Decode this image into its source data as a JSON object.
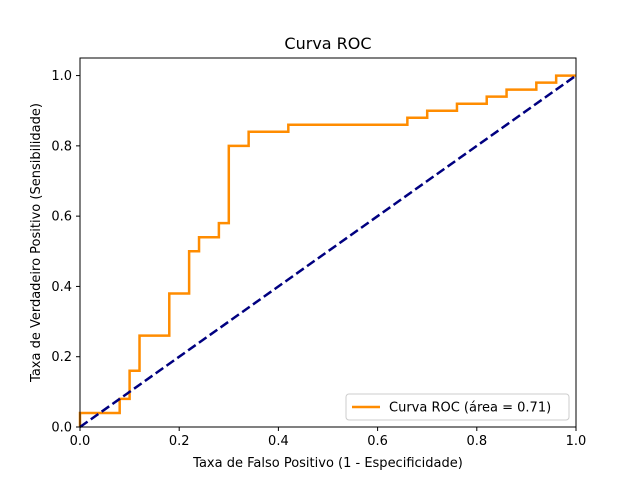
{
  "chart_data": {
    "type": "line",
    "title": "Curva ROC",
    "xlabel": "Taxa de Falso Positivo (1 - Especificidade)",
    "ylabel": "Taxa de Verdadeiro Positivo (Sensibilidade)",
    "xlim": [
      0.0,
      1.0
    ],
    "ylim": [
      0.0,
      1.05
    ],
    "xticks": [
      0.0,
      0.2,
      0.4,
      0.6,
      0.8,
      1.0
    ],
    "yticks": [
      0.0,
      0.2,
      0.4,
      0.6,
      0.8,
      1.0
    ],
    "xtick_labels": [
      "0.0",
      "0.2",
      "0.4",
      "0.6",
      "0.8",
      "1.0"
    ],
    "ytick_labels": [
      "0.0",
      "0.2",
      "0.4",
      "0.6",
      "0.8",
      "1.0"
    ],
    "grid": false,
    "legend_position": "lower-right",
    "series": [
      {
        "name": "Curva ROC (área = 0.71)",
        "color": "#ff8c00",
        "style": "solid",
        "x": [
          0.0,
          0.0,
          0.08,
          0.08,
          0.1,
          0.1,
          0.12,
          0.12,
          0.18,
          0.18,
          0.22,
          0.22,
          0.24,
          0.24,
          0.28,
          0.28,
          0.3,
          0.3,
          0.34,
          0.34,
          0.42,
          0.42,
          0.66,
          0.66,
          0.7,
          0.7,
          0.76,
          0.76,
          0.82,
          0.82,
          0.86,
          0.86,
          0.92,
          0.92,
          0.96,
          0.96,
          1.0
        ],
        "y": [
          0.0,
          0.04,
          0.04,
          0.08,
          0.08,
          0.16,
          0.16,
          0.26,
          0.26,
          0.38,
          0.38,
          0.5,
          0.5,
          0.54,
          0.54,
          0.58,
          0.58,
          0.8,
          0.8,
          0.84,
          0.84,
          0.86,
          0.86,
          0.88,
          0.88,
          0.9,
          0.9,
          0.92,
          0.92,
          0.94,
          0.94,
          0.96,
          0.96,
          0.98,
          0.98,
          1.0,
          1.0
        ]
      },
      {
        "color": "#000080",
        "style": "dashed",
        "x": [
          0.0,
          1.0
        ],
        "y": [
          0.0,
          1.0
        ]
      }
    ]
  }
}
